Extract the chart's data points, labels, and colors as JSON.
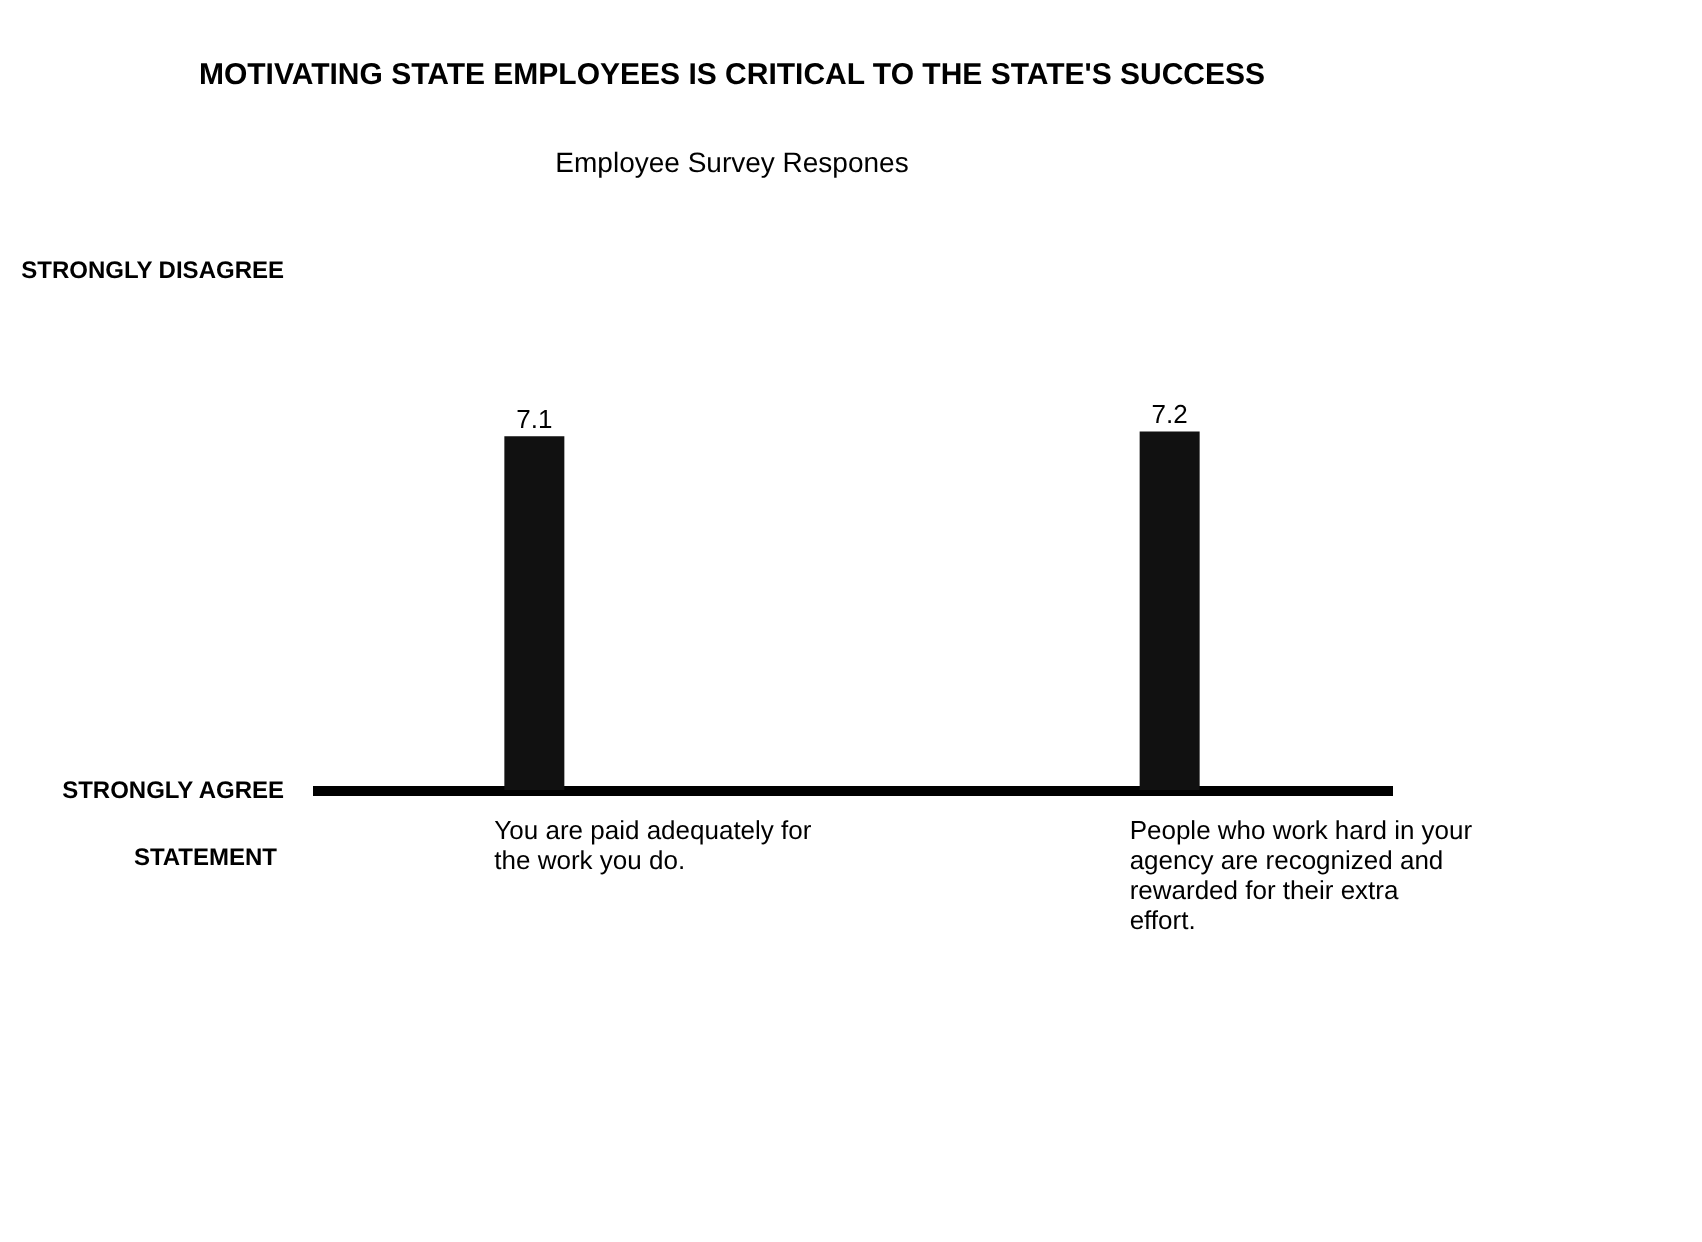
{
  "chart_data": {
    "type": "bar",
    "title": "MOTIVATING STATE EMPLOYEES IS CRITICAL TO THE STATE'S SUCCESS",
    "subtitle": "Employee Survey Respones",
    "xlabel": "STATEMENT",
    "categories": [
      "You are paid adequately for the work you do.",
      "People who work hard in your agency are recognized and rewarded for their extra effort."
    ],
    "values": [
      7.1,
      7.2
    ],
    "color": "#111111",
    "annotations": [
      "STRONGLY AGREE",
      "STRONGLY DISAGREE"
    ],
    "data_labels": true,
    "grid": false
  }
}
